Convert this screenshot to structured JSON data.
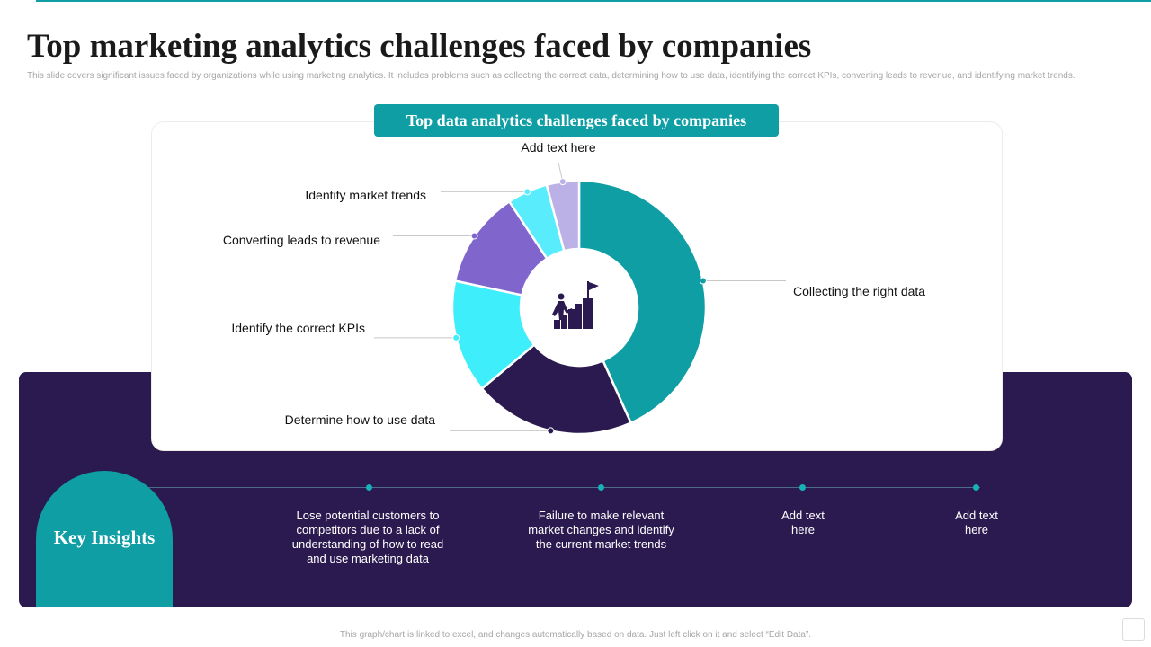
{
  "slide": {
    "title": "Top marketing analytics challenges faced by companies",
    "subtitle": "This slide covers significant issues faced by organizations while using marketing analytics. It includes problems such as collecting the correct data, determining how to use data, identifying the correct KPIs, converting leads to revenue, and identifying market trends.",
    "footer": "This graph/chart is linked to excel, and changes automatically based on data. Just left click on it and select “Edit Data”."
  },
  "chart_data": {
    "type": "pie",
    "variant": "donut",
    "title": "Top data analytics challenges faced by companies",
    "center_icon": "growth-ladder-icon",
    "categories": [
      "Collecting the right data",
      "Determine how to use data",
      "Identify the correct KPIs",
      "Converting leads to revenue",
      "Identify market trends",
      "Add text here"
    ],
    "values": [
      42,
      20,
      14,
      12,
      5,
      4
    ],
    "colors": [
      "#0e9ea4",
      "#2b1a4f",
      "#3eeefa",
      "#8065cc",
      "#58ecfc",
      "#bbb1e6"
    ],
    "labels": [
      {
        "text": "Collecting the right data",
        "side": "right"
      },
      {
        "text": "Determine how to use data",
        "side": "left"
      },
      {
        "text": "Identify the correct KPIs",
        "side": "left"
      },
      {
        "text": "Converting leads to revenue",
        "side": "left"
      },
      {
        "text": "Identify market trends",
        "side": "left"
      },
      {
        "text": "Add text here",
        "side": "top"
      }
    ]
  },
  "insights": {
    "heading": "Key Insights",
    "items": [
      "Lose potential customers to competitors due to a lack of understanding of how to read and use marketing data",
      "Failure to make relevant market changes and identify the current market trends",
      "Add text here",
      "Add text here"
    ]
  }
}
